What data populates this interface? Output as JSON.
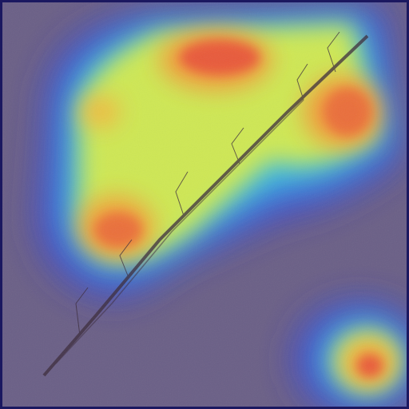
{
  "image": {
    "kind": "heatmap-overlay-photo",
    "base_color": "#6a5f86",
    "border_color": "#1b1860",
    "crack_color": "#3a2a3a"
  },
  "colormap": [
    "#2a2ad0",
    "#2a8cff",
    "#2fe3d5",
    "#b9f25a",
    "#f2e64a",
    "#f59a3a",
    "#e8533a"
  ],
  "hotspots": [
    {
      "name": "top-center-peak",
      "intensity": 1.0
    },
    {
      "name": "upper-right-peak",
      "intensity": 0.9
    },
    {
      "name": "left-middle-peak",
      "intensity": 0.95
    },
    {
      "name": "left-upper-spot",
      "intensity": 0.7
    },
    {
      "name": "bottom-right-peak",
      "intensity": 0.95
    }
  ]
}
